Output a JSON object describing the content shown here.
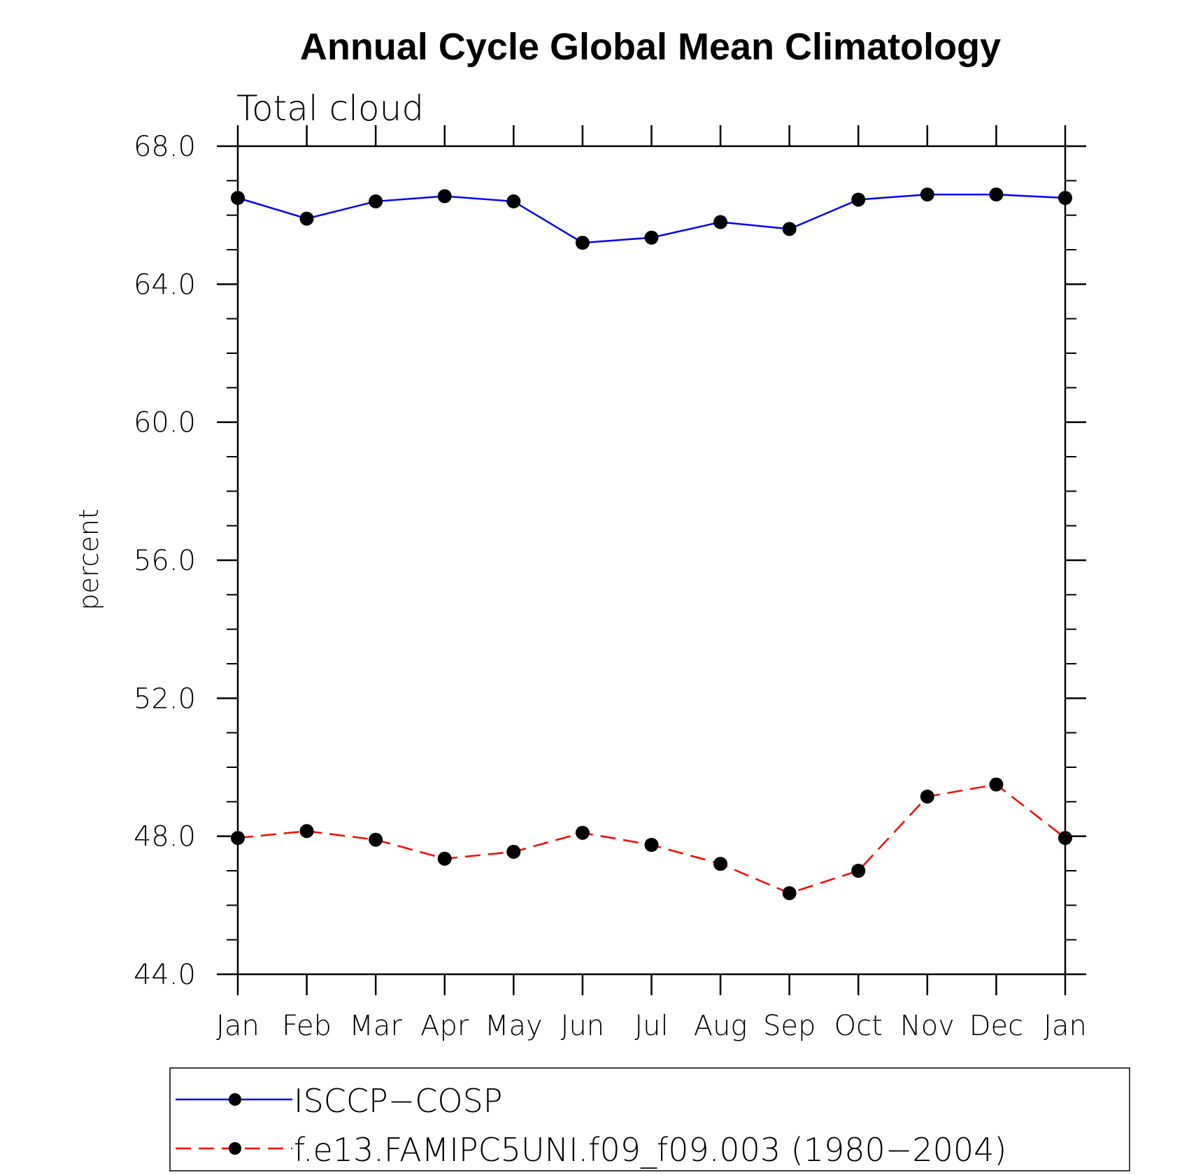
{
  "chart_data": {
    "type": "line",
    "title": "Annual Cycle Global Mean Climatology",
    "subtitle": "Total cloud",
    "xlabel": "",
    "ylabel": "percent",
    "categories": [
      "Jan",
      "Feb",
      "Mar",
      "Apr",
      "May",
      "Jun",
      "Jul",
      "Aug",
      "Sep",
      "Oct",
      "Nov",
      "Dec",
      "Jan"
    ],
    "ylim": [
      44.0,
      68.0
    ],
    "yticks": [
      "44.0",
      "48.0",
      "52.0",
      "56.0",
      "60.0",
      "64.0",
      "68.0"
    ],
    "grid": false,
    "legend_position": "bottom",
    "series": [
      {
        "name": "ISCCP−COSP",
        "color": "#0000ff",
        "dash": "solid",
        "marker": "filled-circle",
        "values": [
          66.5,
          65.9,
          66.4,
          66.55,
          66.4,
          65.2,
          65.35,
          65.8,
          65.6,
          66.45,
          66.6,
          66.6,
          66.5
        ]
      },
      {
        "name": "f.e13.FAMIPC5UNI.f09_f09.003 (1980−2004)",
        "color": "#ff0000",
        "dash": "dashed",
        "marker": "filled-circle",
        "values": [
          47.95,
          48.15,
          47.9,
          47.35,
          47.55,
          48.1,
          47.75,
          47.2,
          46.35,
          47.0,
          49.15,
          49.5,
          47.95
        ]
      }
    ]
  }
}
